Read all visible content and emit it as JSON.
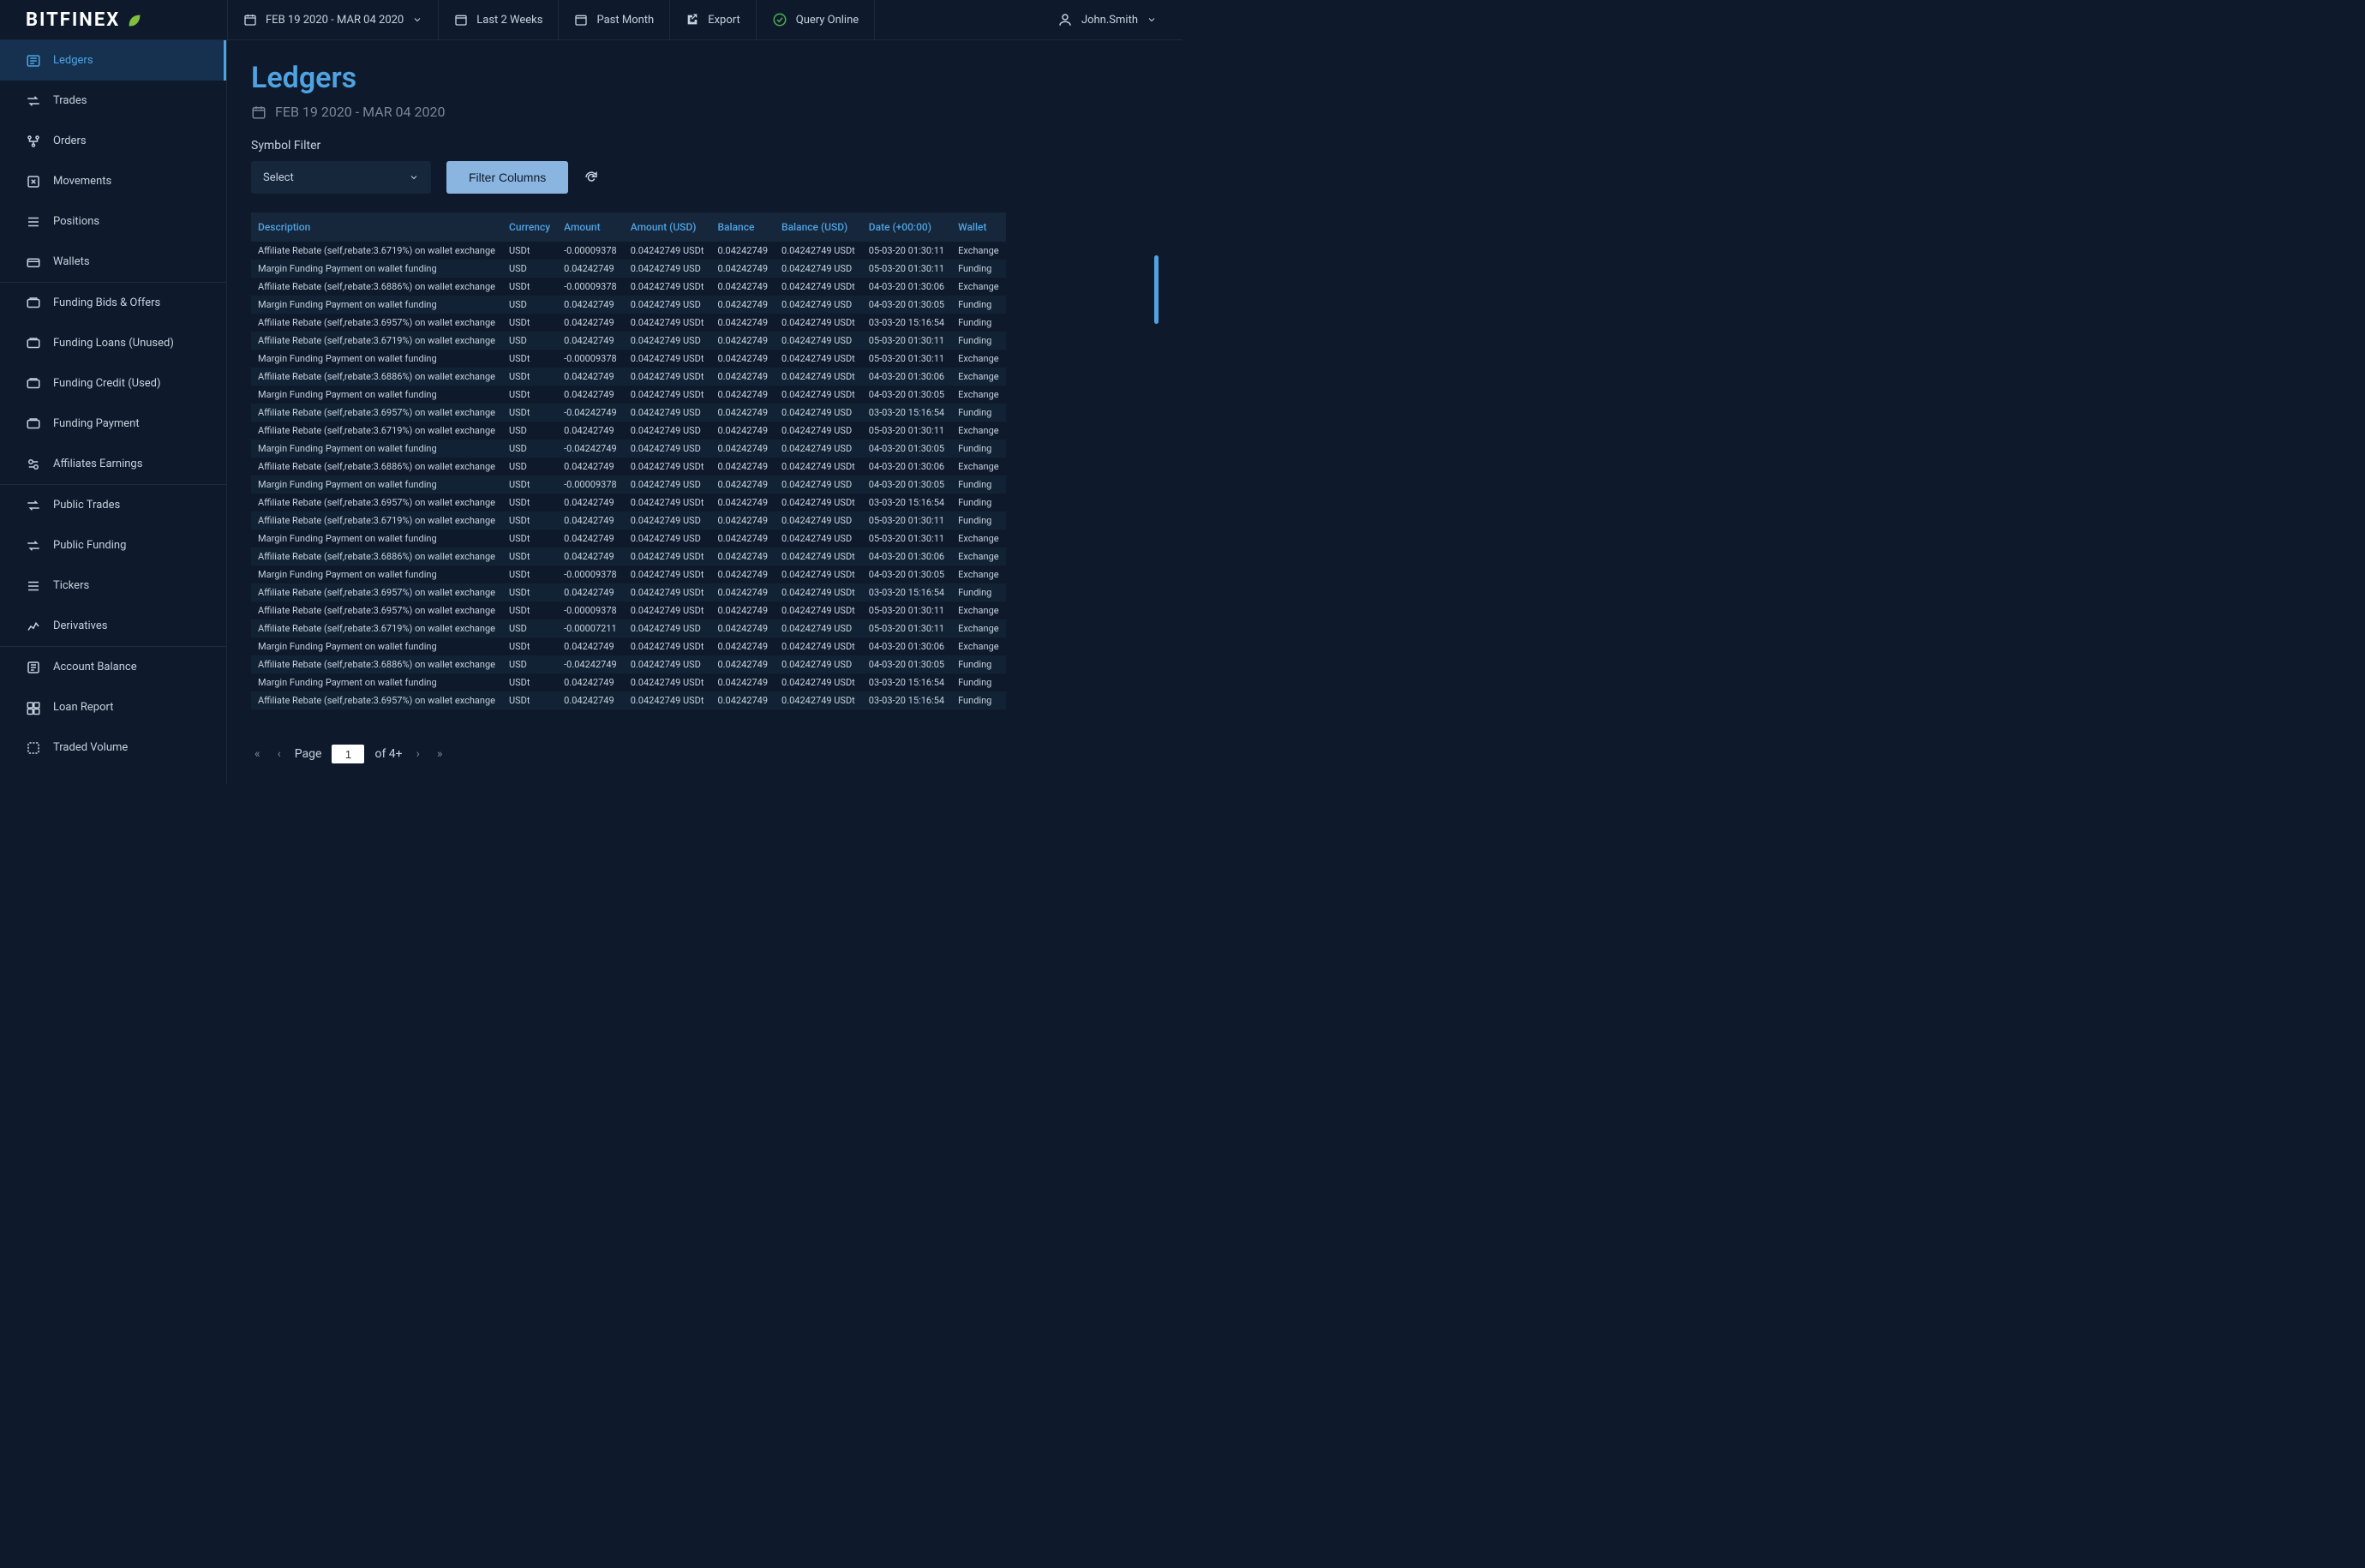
{
  "brand": "BITFINEX",
  "topbar": {
    "daterange": "FEB 19 2020 - MAR  04 2020",
    "last2weeks": "Last 2 Weeks",
    "pastmonth": "Past Month",
    "export": "Export",
    "query": "Query Online"
  },
  "user": {
    "name": "John.Smith"
  },
  "sidebar": {
    "items": [
      {
        "label": "Ledgers",
        "active": true
      },
      {
        "label": "Trades"
      },
      {
        "label": "Orders"
      },
      {
        "label": "Movements"
      },
      {
        "label": "Positions"
      },
      {
        "label": "Wallets",
        "sepAfter": true
      },
      {
        "label": "Funding Bids & Offers"
      },
      {
        "label": "Funding Loans (Unused)"
      },
      {
        "label": "Funding Credit (Used)"
      },
      {
        "label": "Funding Payment"
      },
      {
        "label": "Affiliates Earnings",
        "sepAfter": true
      },
      {
        "label": "Public Trades"
      },
      {
        "label": "Public Funding"
      },
      {
        "label": "Tickers"
      },
      {
        "label": "Derivatives",
        "sepAfter": true
      },
      {
        "label": "Account Balance"
      },
      {
        "label": "Loan Report"
      },
      {
        "label": "Traded Volume"
      }
    ]
  },
  "page": {
    "title": "Ledgers",
    "daterange": "FEB 19 2020 - MAR  04 2020",
    "filterLabel": "Symbol Filter",
    "selectPlaceholder": "Select",
    "filterBtn": "Filter Columns"
  },
  "table": {
    "columns": [
      "Description",
      "Currency",
      "Amount",
      "Amount (USD)",
      "Balance",
      "Balance (USD)",
      "Date (+00:00)",
      "Wallet"
    ],
    "rows": [
      [
        "Affiliate Rebate (self,rebate:3.6719%) on wallet exchange",
        "USDt",
        "-0.00009378",
        "0.04242749 USDt",
        "0.04242749",
        "0.04242749 USDt",
        "05-03-20 01:30:11",
        "Exchange"
      ],
      [
        "Margin Funding Payment on wallet funding",
        "USD",
        "0.04242749",
        "0.04242749 USD",
        "0.04242749",
        "0.04242749 USD",
        "05-03-20 01:30:11",
        "Funding"
      ],
      [
        "Affiliate Rebate (self,rebate:3.6886%) on wallet exchange",
        "USDt",
        "-0.00009378",
        "0.04242749 USDt",
        "0.04242749",
        "0.04242749 USDt",
        "04-03-20 01:30:06",
        "Exchange"
      ],
      [
        "Margin Funding Payment on wallet funding",
        "USD",
        "0.04242749",
        "0.04242749 USD",
        "0.04242749",
        "0.04242749 USD",
        "04-03-20 01:30:05",
        "Funding"
      ],
      [
        "Affiliate Rebate (self,rebate:3.6957%) on wallet exchange",
        "USDt",
        "0.04242749",
        "0.04242749 USDt",
        "0.04242749",
        "0.04242749 USDt",
        "03-03-20 15:16:54",
        "Funding"
      ],
      [
        "Affiliate Rebate (self,rebate:3.6719%) on wallet exchange",
        "USD",
        "0.04242749",
        "0.04242749 USD",
        "0.04242749",
        "0.04242749 USD",
        "05-03-20 01:30:11",
        "Funding"
      ],
      [
        "Margin Funding Payment on wallet funding",
        "USDt",
        "-0.00009378",
        "0.04242749 USDt",
        "0.04242749",
        "0.04242749 USDt",
        "05-03-20 01:30:11",
        "Exchange"
      ],
      [
        "Affiliate Rebate (self,rebate:3.6886%) on wallet exchange",
        "USDt",
        "0.04242749",
        "0.04242749 USDt",
        "0.04242749",
        "0.04242749 USDt",
        "04-03-20 01:30:06",
        "Exchange"
      ],
      [
        "Margin Funding Payment on wallet funding",
        "USDt",
        "0.04242749",
        "0.04242749 USDt",
        "0.04242749",
        "0.04242749 USDt",
        "04-03-20 01:30:05",
        "Exchange"
      ],
      [
        "Affiliate Rebate (self,rebate:3.6957%) on wallet exchange",
        "USDt",
        "-0.04242749",
        "0.04242749 USD",
        "0.04242749",
        "0.04242749 USD",
        "03-03-20 15:16:54",
        "Funding"
      ],
      [
        "Affiliate Rebate (self,rebate:3.6719%) on wallet exchange",
        "USD",
        "0.04242749",
        "0.04242749 USD",
        "0.04242749",
        "0.04242749 USD",
        "05-03-20 01:30:11",
        "Exchange"
      ],
      [
        "Margin Funding Payment on wallet funding",
        "USD",
        "-0.04242749",
        "0.04242749 USD",
        "0.04242749",
        "0.04242749 USD",
        "04-03-20 01:30:05",
        "Funding"
      ],
      [
        "Affiliate Rebate (self,rebate:3.6886%) on wallet exchange",
        "USD",
        "0.04242749",
        "0.04242749 USDt",
        "0.04242749",
        "0.04242749 USDt",
        "04-03-20 01:30:06",
        "Exchange"
      ],
      [
        "Margin Funding Payment on wallet funding",
        "USDt",
        "-0.00009378",
        "0.04242749 USD",
        "0.04242749",
        "0.04242749 USD",
        "04-03-20 01:30:05",
        "Funding"
      ],
      [
        "Affiliate Rebate (self,rebate:3.6957%) on wallet exchange",
        "USDt",
        "0.04242749",
        "0.04242749 USDt",
        "0.04242749",
        "0.04242749 USDt",
        "03-03-20 15:16:54",
        "Funding"
      ],
      [
        "Affiliate Rebate (self,rebate:3.6719%) on wallet exchange",
        "USDt",
        "0.04242749",
        "0.04242749 USD",
        "0.04242749",
        "0.04242749 USD",
        "05-03-20 01:30:11",
        "Funding"
      ],
      [
        "Margin Funding Payment on wallet funding",
        "USDt",
        "0.04242749",
        "0.04242749 USD",
        "0.04242749",
        "0.04242749 USD",
        "05-03-20 01:30:11",
        "Exchange"
      ],
      [
        "Affiliate Rebate (self,rebate:3.6886%) on wallet exchange",
        "USDt",
        "0.04242749",
        "0.04242749 USDt",
        "0.04242749",
        "0.04242749 USDt",
        "04-03-20 01:30:06",
        "Exchange"
      ],
      [
        "Margin Funding Payment on wallet funding",
        "USDt",
        "-0.00009378",
        "0.04242749 USDt",
        "0.04242749",
        "0.04242749 USDt",
        "04-03-20 01:30:05",
        "Exchange"
      ],
      [
        "Affiliate Rebate (self,rebate:3.6957%) on wallet exchange",
        "USDt",
        "0.04242749",
        "0.04242749 USDt",
        "0.04242749",
        "0.04242749 USDt",
        "03-03-20 15:16:54",
        "Funding"
      ],
      [
        "Affiliate Rebate (self,rebate:3.6957%) on wallet exchange",
        "USDt",
        "-0.00009378",
        "0.04242749 USDt",
        "0.04242749",
        "0.04242749 USDt",
        "05-03-20 01:30:11",
        "Exchange"
      ],
      [
        "Affiliate Rebate (self,rebate:3.6719%) on wallet exchange",
        "USD",
        "-0.00007211",
        "0.04242749 USD",
        "0.04242749",
        "0.04242749 USD",
        "05-03-20 01:30:11",
        "Exchange"
      ],
      [
        "Margin Funding Payment on wallet funding",
        "USDt",
        "0.04242749",
        "0.04242749 USDt",
        "0.04242749",
        "0.04242749 USDt",
        "04-03-20 01:30:06",
        "Exchange"
      ],
      [
        "Affiliate Rebate (self,rebate:3.6886%) on wallet exchange",
        "USD",
        "-0.04242749",
        "0.04242749 USD",
        "0.04242749",
        "0.04242749 USD",
        "04-03-20 01:30:05",
        "Funding"
      ],
      [
        "Margin Funding Payment on wallet funding",
        "USDt",
        "0.04242749",
        "0.04242749 USDt",
        "0.04242749",
        "0.04242749 USDt",
        "03-03-20 15:16:54",
        "Funding"
      ],
      [
        "Affiliate Rebate (self,rebate:3.6957%) on wallet exchange",
        "USDt",
        "0.04242749",
        "0.04242749 USDt",
        "0.04242749",
        "0.04242749 USDt",
        "03-03-20 15:16:54",
        "Funding"
      ]
    ]
  },
  "pagination": {
    "pageLabel": "Page",
    "current": "1",
    "ofLabel": "of 4+"
  },
  "colors": {
    "accent": "#4fa3e3",
    "positive": "#4caf50",
    "negative": "#e05555",
    "bg": "#0e1a2b",
    "panel": "#16263b"
  }
}
